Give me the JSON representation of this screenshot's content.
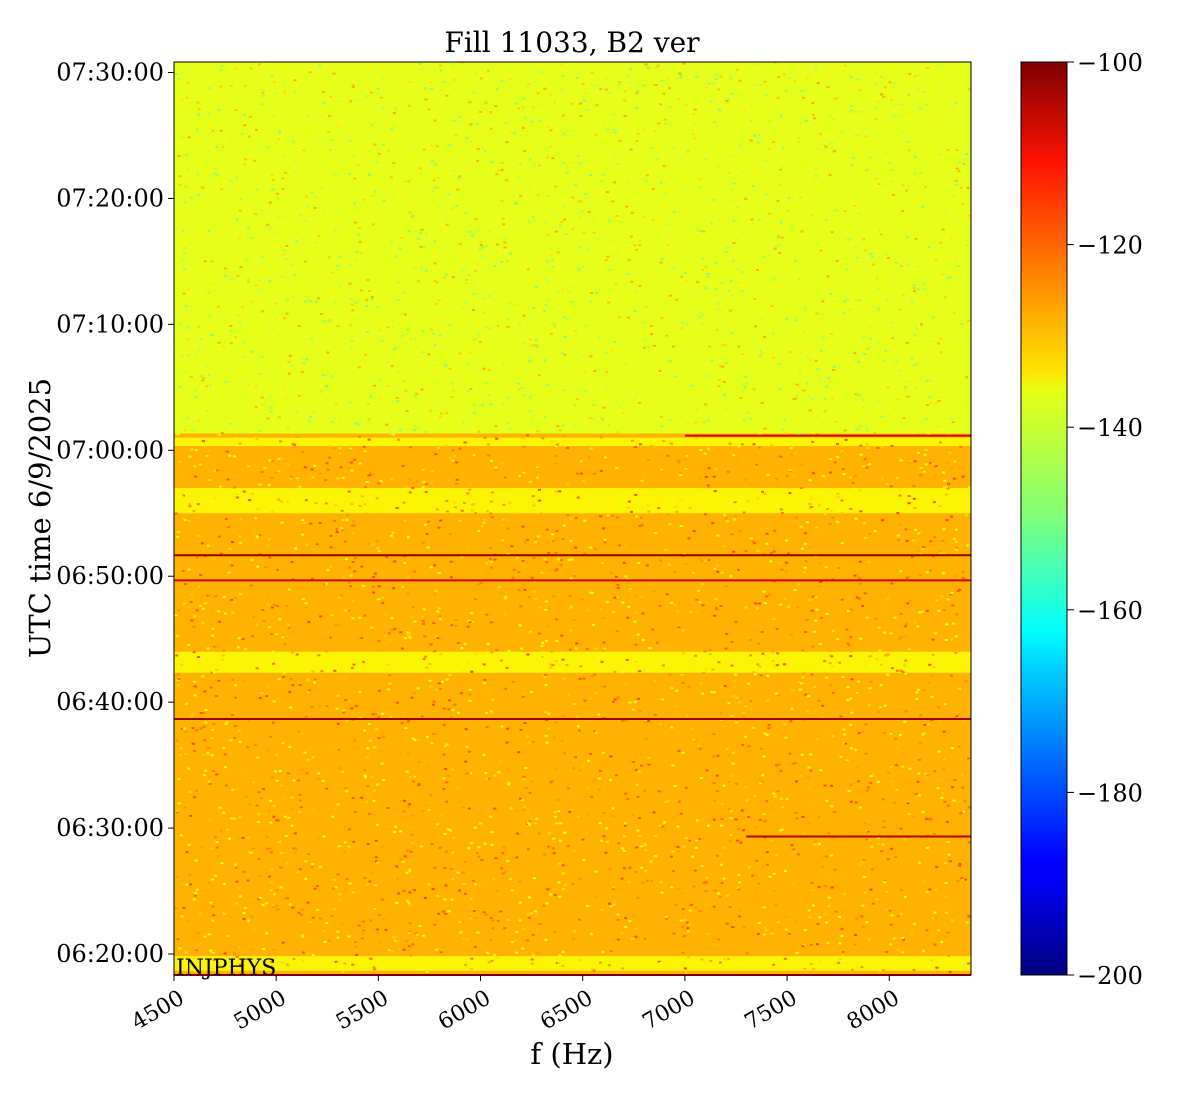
{
  "chart_data": {
    "type": "heatmap",
    "title": "Fill 11033, B2 ver",
    "xlabel": "f (Hz)",
    "ylabel": "UTC time 6/9/2025",
    "annotation": "INJPHYS",
    "x_ticks": [
      4500,
      5000,
      5500,
      6000,
      6500,
      7000,
      7500,
      8000
    ],
    "xlim": [
      4500,
      8400
    ],
    "y_ticks": [
      "06:20:00",
      "06:30:00",
      "06:40:00",
      "06:50:00",
      "07:00:00",
      "07:10:00",
      "07:20:00",
      "07:30:00"
    ],
    "ylim": [
      "06:18:20",
      "07:30:50"
    ],
    "colorbar": {
      "range": [
        -200,
        -100
      ],
      "ticks": [
        -100,
        -120,
        -140,
        -160,
        -180,
        -200
      ],
      "tick_labels": [
        "−100",
        "−120",
        "−140",
        "−160",
        "−180",
        "−200"
      ],
      "colormap": "jet"
    },
    "background_levels": [
      {
        "from": "07:01:20",
        "to": "07:30:50",
        "level": -140
      },
      {
        "from": "06:18:20",
        "to": "07:01:20",
        "level": -130
      }
    ],
    "quiet_bands": [
      {
        "from": "07:00:20",
        "to": "07:01:00"
      },
      {
        "from": "06:55:00",
        "to": "06:57:00"
      },
      {
        "from": "06:44:00",
        "to": "06:42:20"
      },
      {
        "from": "06:19:50",
        "to": "06:18:40"
      }
    ],
    "spectral_lines": [
      {
        "time": "07:01:10",
        "f_start": 7000,
        "f_end": 8400,
        "level": -108
      },
      {
        "time": "06:51:40",
        "f_start": 4500,
        "f_end": 8400,
        "level": -103
      },
      {
        "time": "06:49:40",
        "f_start": 4500,
        "f_end": 8400,
        "level": -108
      },
      {
        "time": "06:38:40",
        "f_start": 4500,
        "f_end": 8400,
        "level": -103
      },
      {
        "time": "06:29:20",
        "f_start": 7300,
        "f_end": 8400,
        "level": -106
      },
      {
        "time": "06:18:20",
        "f_start": 4500,
        "f_end": 8400,
        "level": -112
      }
    ]
  }
}
